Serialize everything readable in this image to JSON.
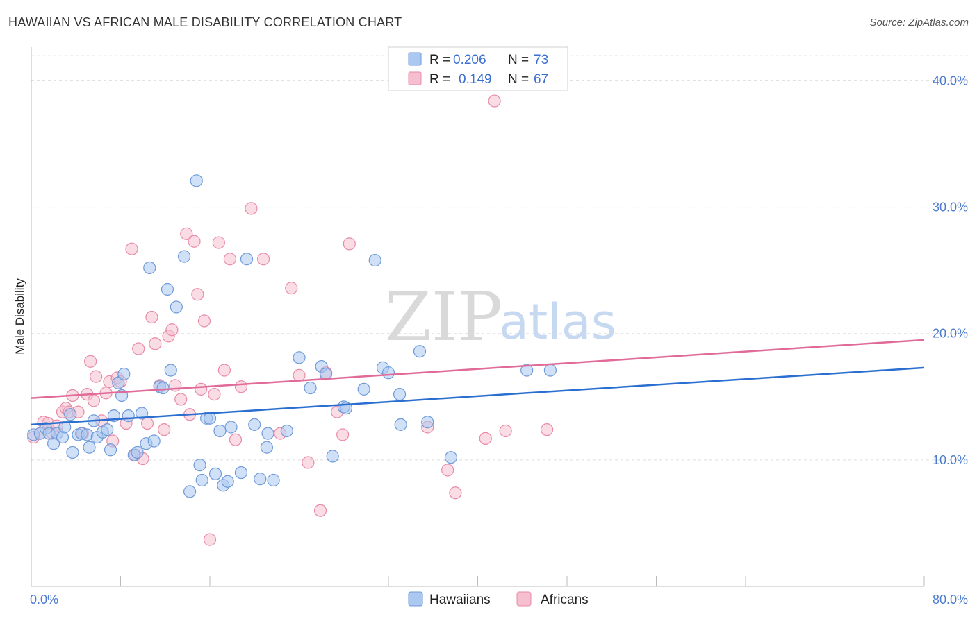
{
  "title": "HAWAIIAN VS AFRICAN MALE DISABILITY CORRELATION CHART",
  "source": "Source: ZipAtlas.com",
  "watermark": {
    "zip": "ZIP",
    "atlas": "atlas"
  },
  "colors": {
    "hawaiians_fill": "#aac8f0",
    "hawaiians_stroke": "#6f9ad8",
    "hawaiians_line": "#2a6fd0",
    "africans_fill": "#f6bfd0",
    "africans_stroke": "#e88aa8",
    "africans_line": "#e06a98"
  },
  "legend": {
    "r_label": "R =",
    "n_label": "N =",
    "rows": [
      {
        "r": "0.206",
        "n": "73"
      },
      {
        "r": "0.149",
        "n": "67"
      }
    ]
  },
  "chart_data": {
    "type": "scatter",
    "title": "HAWAIIAN VS AFRICAN MALE DISABILITY CORRELATION CHART",
    "xlabel": "",
    "ylabel": "Male Disability",
    "xlim": [
      0,
      80
    ],
    "ylim": [
      0,
      42
    ],
    "x_tick_labels": [
      "0.0%",
      "80.0%"
    ],
    "y_ticks": [
      10,
      20,
      30,
      40
    ],
    "y_tick_labels": [
      "10.0%",
      "20.0%",
      "30.0%",
      "40.0%"
    ],
    "grid": "horizontal dashed",
    "legend_placement": "top-center",
    "series": [
      {
        "name": "Hawaiians",
        "trend": {
          "x": [
            0,
            80
          ],
          "y": [
            12.8,
            17.3
          ]
        },
        "points": [
          [
            0.2,
            12.0
          ],
          [
            0.8,
            12.1
          ],
          [
            1.3,
            12.5
          ],
          [
            1.6,
            12.1
          ],
          [
            2.0,
            11.3
          ],
          [
            2.3,
            12.1
          ],
          [
            2.8,
            11.8
          ],
          [
            3.0,
            12.6
          ],
          [
            3.5,
            13.6
          ],
          [
            3.7,
            10.6
          ],
          [
            4.2,
            12.0
          ],
          [
            4.5,
            12.1
          ],
          [
            5.0,
            12.0
          ],
          [
            5.2,
            11.0
          ],
          [
            5.6,
            13.1
          ],
          [
            5.9,
            11.8
          ],
          [
            6.4,
            12.2
          ],
          [
            6.8,
            12.4
          ],
          [
            7.1,
            10.8
          ],
          [
            7.4,
            13.5
          ],
          [
            7.8,
            16.1
          ],
          [
            8.1,
            15.1
          ],
          [
            8.3,
            16.8
          ],
          [
            8.7,
            13.5
          ],
          [
            9.2,
            10.4
          ],
          [
            9.5,
            10.6
          ],
          [
            9.9,
            13.7
          ],
          [
            10.3,
            11.3
          ],
          [
            10.6,
            25.2
          ],
          [
            11.0,
            11.5
          ],
          [
            11.5,
            15.8
          ],
          [
            11.8,
            15.7
          ],
          [
            12.2,
            23.5
          ],
          [
            12.5,
            17.1
          ],
          [
            13.0,
            22.1
          ],
          [
            13.7,
            26.1
          ],
          [
            14.2,
            7.5
          ],
          [
            14.8,
            32.1
          ],
          [
            15.1,
            9.6
          ],
          [
            15.3,
            8.4
          ],
          [
            15.7,
            13.3
          ],
          [
            16.0,
            13.3
          ],
          [
            16.5,
            8.9
          ],
          [
            16.9,
            12.3
          ],
          [
            17.2,
            8.0
          ],
          [
            17.6,
            8.3
          ],
          [
            17.9,
            12.6
          ],
          [
            18.8,
            9.0
          ],
          [
            19.3,
            25.9
          ],
          [
            20.0,
            12.8
          ],
          [
            20.5,
            8.5
          ],
          [
            21.1,
            11.0
          ],
          [
            21.2,
            12.1
          ],
          [
            21.7,
            8.4
          ],
          [
            22.9,
            12.3
          ],
          [
            24.0,
            18.1
          ],
          [
            25.0,
            15.7
          ],
          [
            26.0,
            17.4
          ],
          [
            26.4,
            16.8
          ],
          [
            27.0,
            10.3
          ],
          [
            28.0,
            14.2
          ],
          [
            28.2,
            14.1
          ],
          [
            29.8,
            15.6
          ],
          [
            30.8,
            25.8
          ],
          [
            31.5,
            17.3
          ],
          [
            32.0,
            16.9
          ],
          [
            33.0,
            15.2
          ],
          [
            33.1,
            12.8
          ],
          [
            34.8,
            18.6
          ],
          [
            35.5,
            13.0
          ],
          [
            37.6,
            10.2
          ],
          [
            44.4,
            17.1
          ],
          [
            46.5,
            17.1
          ]
        ]
      },
      {
        "name": "Africans",
        "trend": {
          "x": [
            0,
            80
          ],
          "y": [
            14.9,
            19.5
          ]
        },
        "points": [
          [
            0.2,
            11.8
          ],
          [
            0.8,
            12.1
          ],
          [
            1.1,
            13.0
          ],
          [
            1.5,
            12.9
          ],
          [
            1.9,
            12.1
          ],
          [
            2.3,
            12.7
          ],
          [
            2.8,
            13.8
          ],
          [
            3.1,
            14.1
          ],
          [
            3.4,
            13.8
          ],
          [
            3.7,
            15.1
          ],
          [
            4.2,
            13.8
          ],
          [
            4.6,
            12.1
          ],
          [
            5.0,
            15.2
          ],
          [
            5.3,
            17.8
          ],
          [
            5.6,
            14.7
          ],
          [
            5.8,
            16.6
          ],
          [
            6.3,
            13.1
          ],
          [
            6.7,
            15.3
          ],
          [
            7.0,
            16.2
          ],
          [
            7.3,
            11.5
          ],
          [
            7.7,
            16.5
          ],
          [
            8.0,
            16.2
          ],
          [
            8.5,
            12.9
          ],
          [
            9.0,
            26.7
          ],
          [
            9.3,
            10.4
          ],
          [
            9.6,
            18.8
          ],
          [
            10.0,
            10.1
          ],
          [
            10.4,
            12.9
          ],
          [
            10.8,
            21.3
          ],
          [
            11.1,
            19.2
          ],
          [
            11.5,
            15.9
          ],
          [
            11.9,
            12.4
          ],
          [
            12.3,
            19.8
          ],
          [
            12.6,
            20.3
          ],
          [
            12.9,
            15.9
          ],
          [
            13.4,
            14.8
          ],
          [
            13.9,
            27.9
          ],
          [
            14.2,
            13.6
          ],
          [
            14.6,
            27.3
          ],
          [
            14.9,
            23.1
          ],
          [
            15.2,
            15.6
          ],
          [
            15.5,
            21.0
          ],
          [
            16.0,
            3.7
          ],
          [
            16.4,
            15.2
          ],
          [
            16.8,
            27.2
          ],
          [
            17.3,
            17.1
          ],
          [
            17.8,
            25.9
          ],
          [
            18.3,
            11.6
          ],
          [
            18.8,
            15.8
          ],
          [
            19.7,
            29.9
          ],
          [
            20.8,
            25.9
          ],
          [
            22.3,
            12.1
          ],
          [
            23.3,
            23.6
          ],
          [
            24.0,
            16.7
          ],
          [
            24.8,
            9.8
          ],
          [
            25.9,
            6.0
          ],
          [
            26.4,
            16.9
          ],
          [
            27.4,
            13.8
          ],
          [
            27.9,
            12.0
          ],
          [
            28.5,
            27.1
          ],
          [
            35.5,
            12.6
          ],
          [
            37.3,
            9.2
          ],
          [
            38.0,
            7.4
          ],
          [
            40.7,
            11.7
          ],
          [
            41.5,
            38.4
          ],
          [
            42.5,
            12.3
          ],
          [
            46.2,
            12.4
          ]
        ]
      }
    ]
  }
}
